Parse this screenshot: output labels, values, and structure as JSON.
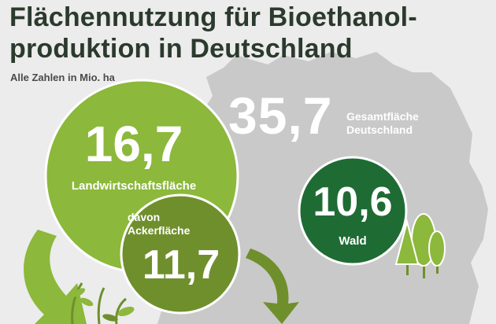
{
  "title": {
    "line1": "Flächennutzung für Bioethanol-",
    "line2": "produktion in Deutschland"
  },
  "subtitle": "Alle Zahlen in Mio. ha",
  "total": {
    "value": "35,7",
    "label_line1": "Gesamtfläche",
    "label_line2": "Deutschland"
  },
  "agriculture": {
    "value": "16,7",
    "label": "Landwirtschaftsfläche"
  },
  "arable": {
    "label_line1": "davon",
    "label_line2": "Ackerfläche",
    "value": "11,7"
  },
  "forest": {
    "value": "10,6",
    "label": "Wald"
  },
  "colors": {
    "background": "#ececec",
    "map": "#c9c9c9",
    "agriculture_green": "#8cb83b",
    "arable_green": "#6f8f2c",
    "forest_green": "#1f6b34",
    "title_text": "#2c3a2e"
  }
}
